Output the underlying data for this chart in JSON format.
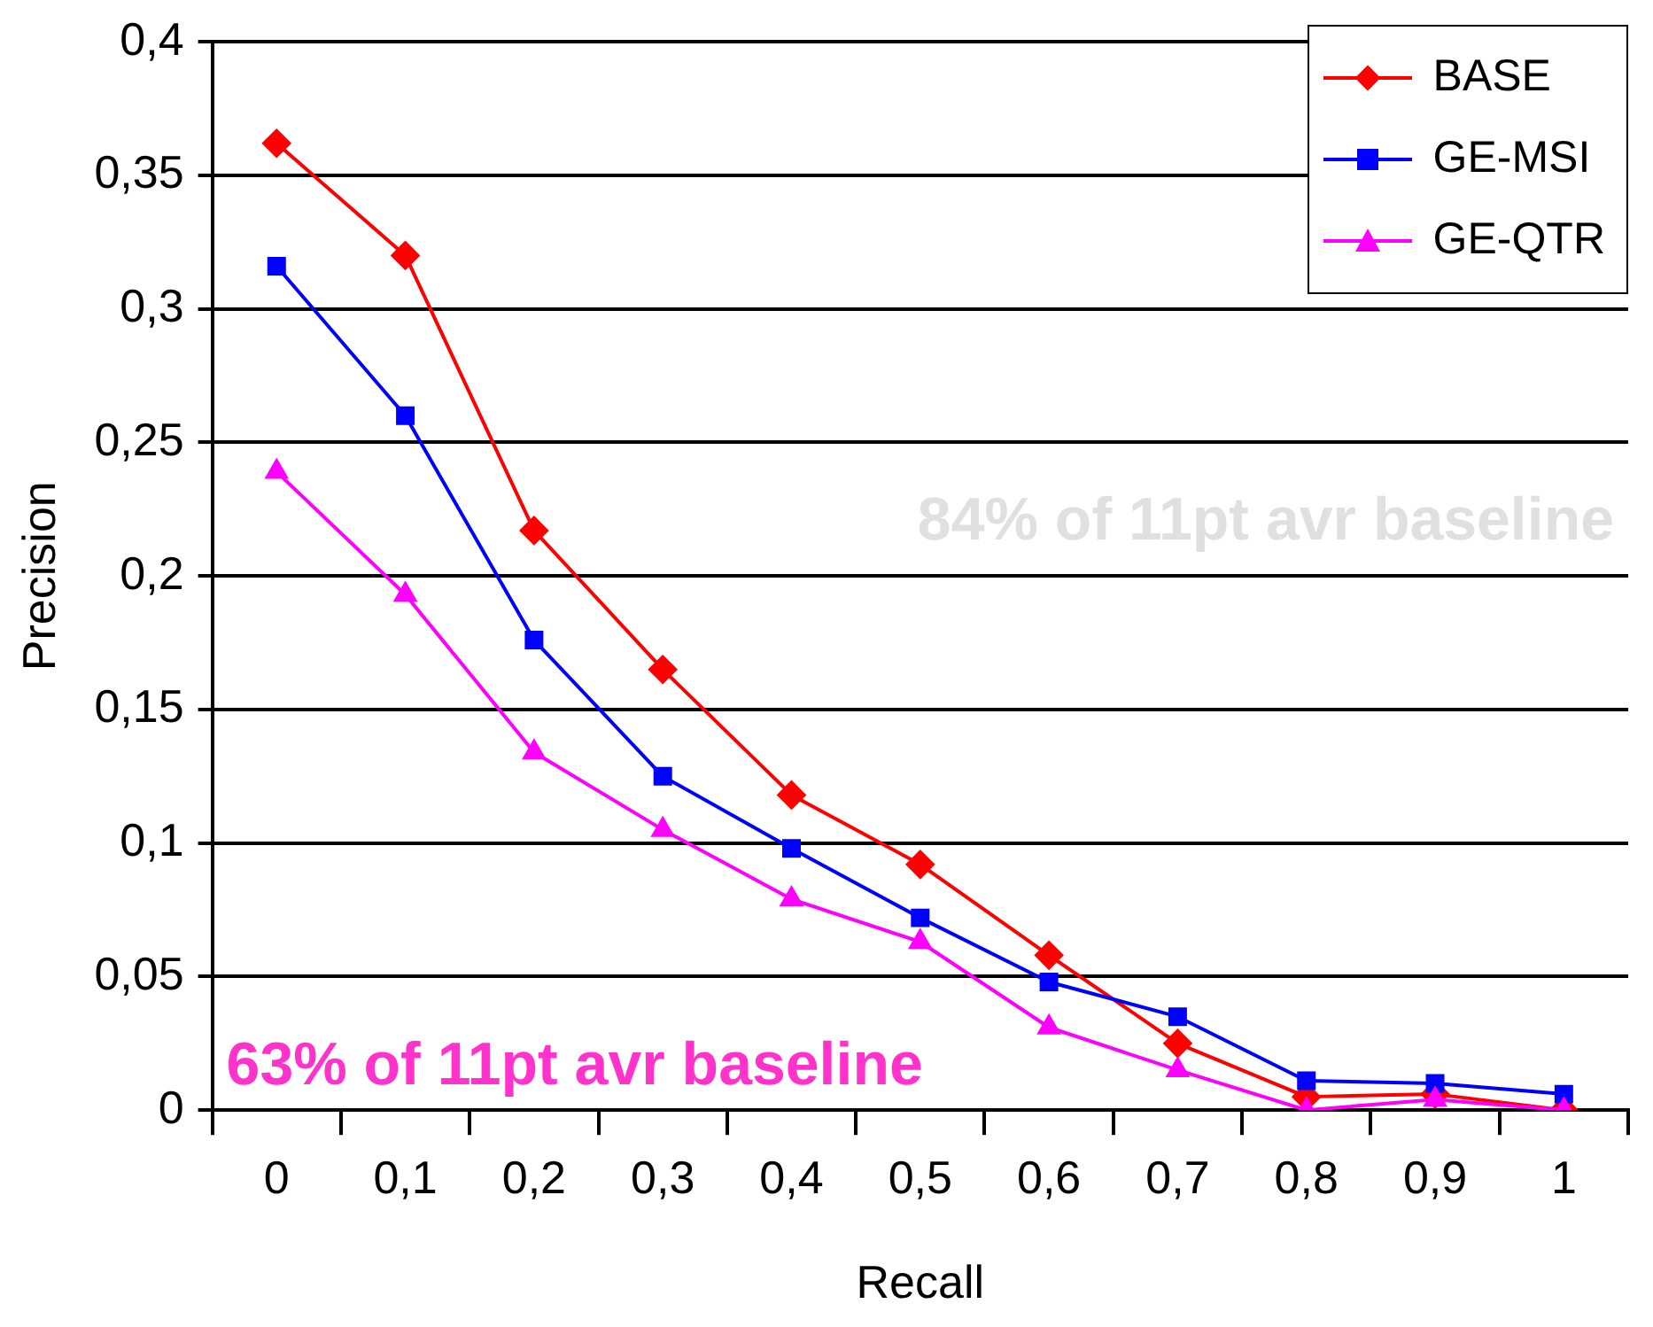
{
  "chart_data": {
    "type": "line",
    "xlabel": "Recall",
    "ylabel": "Precision",
    "categories": [
      "0",
      "0,1",
      "0,2",
      "0,3",
      "0,4",
      "0,5",
      "0,6",
      "0,7",
      "0,8",
      "0,9",
      "1"
    ],
    "series": [
      {
        "name": "BASE",
        "color": "#ff0000",
        "marker": "diamond",
        "values": [
          0.362,
          0.32,
          0.217,
          0.165,
          0.118,
          0.092,
          0.058,
          0.025,
          0.005,
          0.006,
          0
        ]
      },
      {
        "name": "GE-MSI",
        "color": "#0000ff",
        "marker": "square",
        "values": [
          0.316,
          0.26,
          0.176,
          0.125,
          0.098,
          0.072,
          0.048,
          0.035,
          0.011,
          0.01,
          0.006
        ]
      },
      {
        "name": "GE-QTR",
        "color": "#ff00ff",
        "marker": "triangle",
        "values": [
          0.239,
          0.193,
          0.134,
          0.105,
          0.079,
          0.063,
          0.031,
          0.015,
          0,
          0.004,
          0
        ]
      }
    ],
    "ylim": [
      0,
      0.4
    ],
    "yticks": [
      0,
      {
        "value": 0.05,
        "label": "0,05"
      },
      {
        "value": 0.1,
        "label": "0,1"
      },
      {
        "value": 0.15,
        "label": "0,15"
      },
      {
        "value": 0.2,
        "label": "0,2"
      },
      {
        "value": 0.25,
        "label": "0,25"
      },
      {
        "value": 0.3,
        "label": "0,3"
      },
      {
        "value": 0.35,
        "label": "0,35"
      },
      {
        "value": 0.4,
        "label": "0,4"
      }
    ],
    "annotations": [
      "84% of 11pt avr baseline",
      "63% of 11pt avr baseline"
    ],
    "grid": "y",
    "legend": "top right",
    "line_style": "solid"
  }
}
